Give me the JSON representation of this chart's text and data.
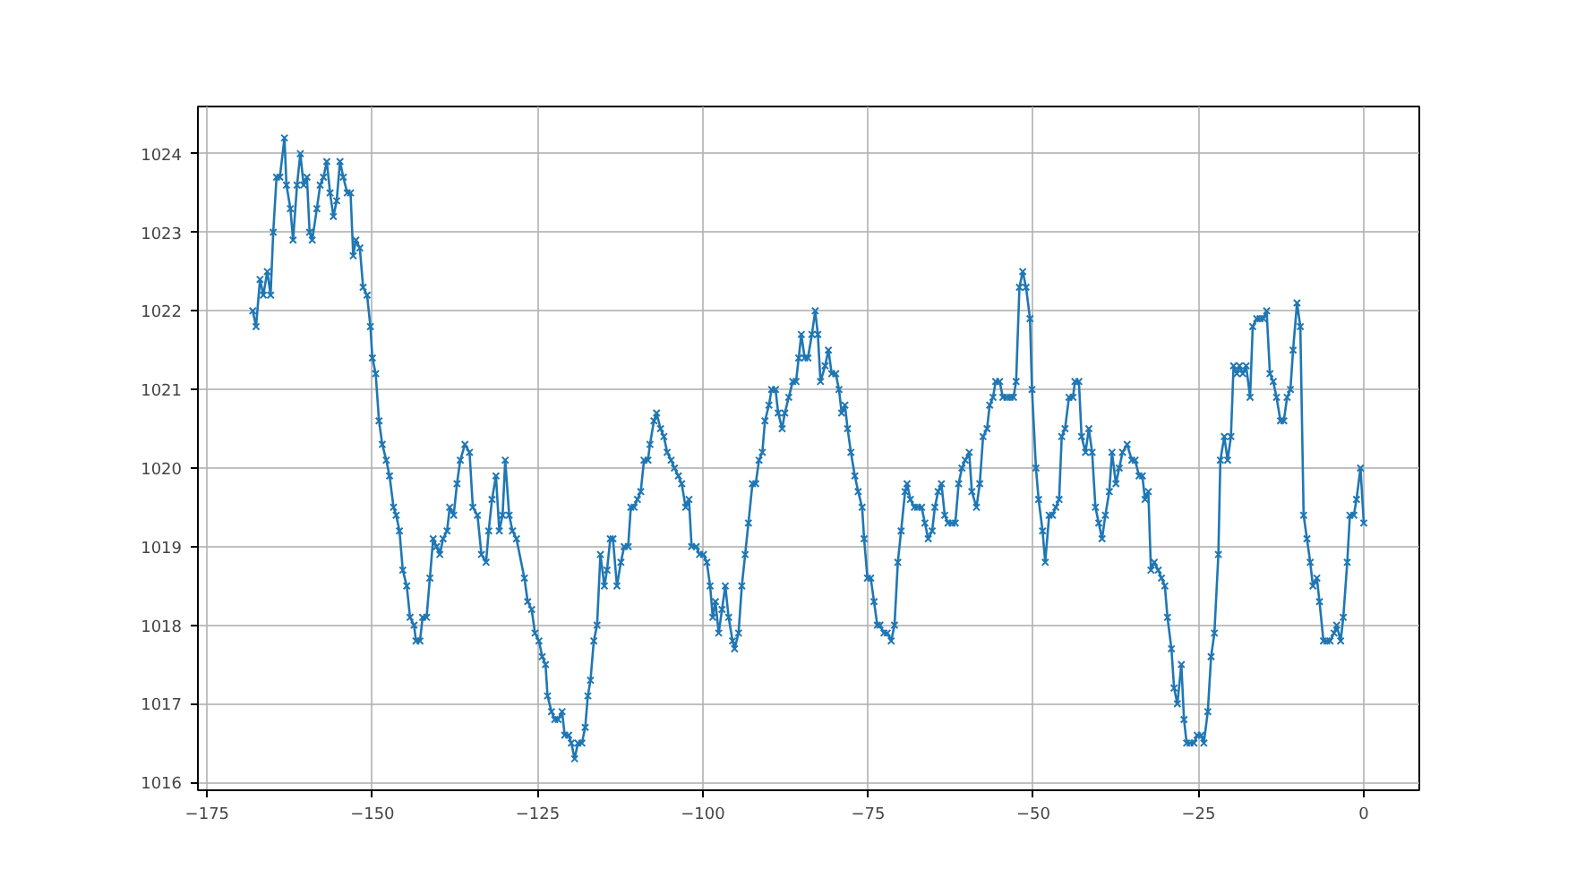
{
  "chart_data": {
    "type": "line",
    "marker": "cross",
    "line_style": "solid",
    "grid": true,
    "xlim": [
      -176.4,
      8.4
    ],
    "ylim": [
      1015.9,
      1024.6
    ],
    "xticks": [
      -175,
      -150,
      -125,
      -100,
      -75,
      -50,
      -25,
      0
    ],
    "yticks": [
      1016,
      1017,
      1018,
      1019,
      1020,
      1021,
      1022,
      1023,
      1024
    ],
    "series": [
      {
        "color": "#1f77b4",
        "x": [
          -168.1,
          -167.6,
          -167.0,
          -166.5,
          -165.9,
          -165.4,
          -165.0,
          -164.5,
          -164.0,
          -163.3,
          -163.0,
          -162.4,
          -162.0,
          -161.4,
          -160.9,
          -160.4,
          -159.9,
          -159.5,
          -159.1,
          -158.4,
          -157.9,
          -157.4,
          -156.9,
          -156.4,
          -155.9,
          -155.4,
          -154.9,
          -154.4,
          -153.8,
          -153.3,
          -152.9,
          -152.5,
          -151.9,
          -151.4,
          -150.8,
          -150.3,
          -150.0,
          -149.5,
          -149.0,
          -148.5,
          -147.9,
          -147.4,
          -146.8,
          -146.4,
          -145.9,
          -145.4,
          -144.8,
          -144.3,
          -143.7,
          -143.4,
          -142.8,
          -142.4,
          -141.8,
          -141.3,
          -140.8,
          -140.3,
          -139.8,
          -139.3,
          -138.7,
          -138.3,
          -137.7,
          -137.2,
          -136.7,
          -136.0,
          -135.3,
          -134.8,
          -134.1,
          -133.5,
          -132.8,
          -132.4,
          -131.9,
          -131.3,
          -130.8,
          -130.3,
          -129.9,
          -129.3,
          -128.8,
          -128.2,
          -127.0,
          -126.5,
          -125.9,
          -125.4,
          -124.8,
          -124.3,
          -123.8,
          -123.5,
          -122.9,
          -122.4,
          -121.9,
          -121.3,
          -120.9,
          -120.3,
          -119.9,
          -119.4,
          -118.9,
          -118.3,
          -117.8,
          -117.4,
          -117.0,
          -116.5,
          -116.0,
          -115.5,
          -114.9,
          -114.5,
          -114.0,
          -113.6,
          -113.0,
          -112.4,
          -111.9,
          -111.3,
          -110.9,
          -110.4,
          -109.9,
          -109.4,
          -108.9,
          -108.3,
          -108.0,
          -107.4,
          -107.0,
          -106.4,
          -105.9,
          -105.4,
          -104.8,
          -104.3,
          -103.7,
          -103.2,
          -102.6,
          -102.1,
          -101.7,
          -101.0,
          -100.5,
          -99.9,
          -99.4,
          -98.9,
          -98.5,
          -98.1,
          -97.6,
          -97.1,
          -96.6,
          -96.1,
          -95.5,
          -95.2,
          -94.6,
          -94.1,
          -93.6,
          -93.1,
          -92.5,
          -92.0,
          -91.5,
          -91.0,
          -90.6,
          -90.0,
          -89.6,
          -89.0,
          -88.6,
          -88.0,
          -87.6,
          -87.0,
          -86.4,
          -85.9,
          -85.5,
          -85.1,
          -84.6,
          -84.1,
          -83.5,
          -83.0,
          -82.6,
          -82.2,
          -81.5,
          -81.0,
          -80.5,
          -79.9,
          -79.4,
          -79.0,
          -78.5,
          -78.1,
          -77.6,
          -77.0,
          -76.5,
          -75.9,
          -75.6,
          -75.1,
          -74.6,
          -74.1,
          -73.6,
          -73.2,
          -72.6,
          -72.1,
          -71.5,
          -71.0,
          -70.5,
          -70.0,
          -69.4,
          -69.1,
          -68.6,
          -68.0,
          -67.5,
          -66.9,
          -66.4,
          -65.9,
          -65.3,
          -64.9,
          -64.4,
          -63.9,
          -63.4,
          -62.9,
          -62.3,
          -61.8,
          -61.3,
          -60.8,
          -60.3,
          -59.7,
          -59.3,
          -58.6,
          -58.1,
          -57.6,
          -57.0,
          -56.6,
          -56.1,
          -55.7,
          -55.1,
          -54.6,
          -54.0,
          -53.5,
          -53.0,
          -52.6,
          -52.1,
          -51.6,
          -51.1,
          -50.5,
          -50.2,
          -49.6,
          -49.2,
          -48.6,
          -48.2,
          -47.6,
          -47.1,
          -46.6,
          -46.1,
          -45.7,
          -45.2,
          -44.6,
          -44.0,
          -43.7,
          -43.1,
          -42.7,
          -42.1,
          -41.6,
          -41.1,
          -40.6,
          -40.1,
          -39.6,
          -39.1,
          -38.5,
          -38.1,
          -37.5,
          -37.0,
          -36.5,
          -35.8,
          -35.1,
          -34.6,
          -34.0,
          -33.5,
          -33.1,
          -32.6,
          -32.2,
          -31.7,
          -31.1,
          -30.6,
          -30.1,
          -29.7,
          -29.1,
          -28.7,
          -28.2,
          -27.6,
          -27.2,
          -26.8,
          -26.3,
          -25.7,
          -25.2,
          -24.6,
          -24.2,
          -23.6,
          -23.1,
          -22.6,
          -22.0,
          -21.7,
          -21.1,
          -20.6,
          -20.1,
          -19.7,
          -19.2,
          -18.8,
          -18.3,
          -17.8,
          -17.2,
          -16.8,
          -16.2,
          -15.7,
          -15.2,
          -14.7,
          -14.2,
          -13.7,
          -13.2,
          -12.6,
          -12.1,
          -11.6,
          -11.1,
          -10.7,
          -10.1,
          -9.6,
          -9.1,
          -8.6,
          -8.1,
          -7.7,
          -7.1,
          -6.7,
          -6.1,
          -5.6,
          -5.1,
          -4.5,
          -4.1,
          -3.5,
          -3.1,
          -2.5,
          -2.1,
          -1.5,
          -1.1,
          -0.5,
          0.0
        ],
        "values": [
          1022.0,
          1021.8,
          1022.4,
          1022.2,
          1022.5,
          1022.2,
          1023.0,
          1023.7,
          1023.7,
          1024.2,
          1023.6,
          1023.3,
          1022.9,
          1023.6,
          1024.0,
          1023.6,
          1023.7,
          1023.0,
          1022.9,
          1023.3,
          1023.6,
          1023.7,
          1023.9,
          1023.5,
          1023.2,
          1023.4,
          1023.9,
          1023.7,
          1023.5,
          1023.5,
          1022.7,
          1022.9,
          1022.8,
          1022.3,
          1022.2,
          1021.8,
          1021.4,
          1021.2,
          1020.6,
          1020.3,
          1020.1,
          1019.9,
          1019.5,
          1019.4,
          1019.2,
          1018.7,
          1018.5,
          1018.1,
          1018.0,
          1017.8,
          1017.8,
          1018.1,
          1018.1,
          1018.6,
          1019.1,
          1019.0,
          1018.9,
          1019.1,
          1019.2,
          1019.5,
          1019.4,
          1019.8,
          1020.1,
          1020.3,
          1020.2,
          1019.5,
          1019.4,
          1018.9,
          1018.8,
          1019.2,
          1019.6,
          1019.9,
          1019.2,
          1019.4,
          1020.1,
          1019.4,
          1019.2,
          1019.1,
          1018.6,
          1018.3,
          1018.2,
          1017.9,
          1017.8,
          1017.6,
          1017.5,
          1017.1,
          1016.9,
          1016.8,
          1016.8,
          1016.9,
          1016.6,
          1016.6,
          1016.5,
          1016.3,
          1016.5,
          1016.5,
          1016.7,
          1017.1,
          1017.3,
          1017.8,
          1018.0,
          1018.9,
          1018.5,
          1018.7,
          1019.1,
          1019.1,
          1018.5,
          1018.8,
          1019.0,
          1019.0,
          1019.5,
          1019.5,
          1019.6,
          1019.7,
          1020.1,
          1020.1,
          1020.3,
          1020.6,
          1020.7,
          1020.5,
          1020.4,
          1020.2,
          1020.1,
          1020.0,
          1019.9,
          1019.8,
          1019.5,
          1019.6,
          1019.0,
          1019.0,
          1018.9,
          1018.9,
          1018.8,
          1018.5,
          1018.1,
          1018.3,
          1017.9,
          1018.2,
          1018.5,
          1018.1,
          1017.8,
          1017.7,
          1017.9,
          1018.5,
          1018.9,
          1019.3,
          1019.8,
          1019.8,
          1020.1,
          1020.2,
          1020.6,
          1020.8,
          1021.0,
          1021.0,
          1020.7,
          1020.5,
          1020.7,
          1020.9,
          1021.1,
          1021.1,
          1021.4,
          1021.7,
          1021.4,
          1021.4,
          1021.7,
          1022.0,
          1021.7,
          1021.1,
          1021.3,
          1021.5,
          1021.2,
          1021.2,
          1021.0,
          1020.7,
          1020.8,
          1020.5,
          1020.2,
          1019.9,
          1019.7,
          1019.5,
          1019.1,
          1018.6,
          1018.6,
          1018.3,
          1018.0,
          1018.0,
          1017.9,
          1017.9,
          1017.8,
          1018.0,
          1018.8,
          1019.2,
          1019.7,
          1019.8,
          1019.6,
          1019.5,
          1019.5,
          1019.5,
          1019.3,
          1019.1,
          1019.2,
          1019.5,
          1019.7,
          1019.8,
          1019.4,
          1019.3,
          1019.3,
          1019.3,
          1019.8,
          1020.0,
          1020.1,
          1020.2,
          1019.7,
          1019.5,
          1019.8,
          1020.4,
          1020.5,
          1020.8,
          1020.9,
          1021.1,
          1021.1,
          1020.9,
          1020.9,
          1020.9,
          1020.9,
          1021.1,
          1022.3,
          1022.5,
          1022.3,
          1021.9,
          1021.0,
          1020.0,
          1019.6,
          1019.2,
          1018.8,
          1019.4,
          1019.4,
          1019.5,
          1019.6,
          1020.4,
          1020.5,
          1020.9,
          1020.9,
          1021.1,
          1021.1,
          1020.4,
          1020.2,
          1020.5,
          1020.2,
          1019.5,
          1019.3,
          1019.1,
          1019.4,
          1019.7,
          1020.2,
          1019.8,
          1020.0,
          1020.2,
          1020.3,
          1020.1,
          1020.1,
          1019.9,
          1019.9,
          1019.6,
          1019.7,
          1018.7,
          1018.8,
          1018.7,
          1018.6,
          1018.5,
          1018.1,
          1017.7,
          1017.2,
          1017.0,
          1017.5,
          1016.8,
          1016.5,
          1016.5,
          1016.5,
          1016.6,
          1016.6,
          1016.5,
          1016.9,
          1017.6,
          1017.9,
          1018.9,
          1020.1,
          1020.4,
          1020.1,
          1020.4,
          1021.3,
          1021.2,
          1021.3,
          1021.2,
          1021.3,
          1020.9,
          1021.8,
          1021.9,
          1021.9,
          1021.9,
          1022.0,
          1021.2,
          1021.1,
          1020.9,
          1020.6,
          1020.6,
          1020.9,
          1021.0,
          1021.5,
          1022.1,
          1021.8,
          1019.4,
          1019.1,
          1018.8,
          1018.5,
          1018.6,
          1018.3,
          1017.8,
          1017.8,
          1017.8,
          1017.9,
          1018.0,
          1017.8,
          1018.1,
          1018.8,
          1019.4,
          1019.4,
          1019.6,
          1020.0,
          1019.3
        ]
      }
    ]
  }
}
